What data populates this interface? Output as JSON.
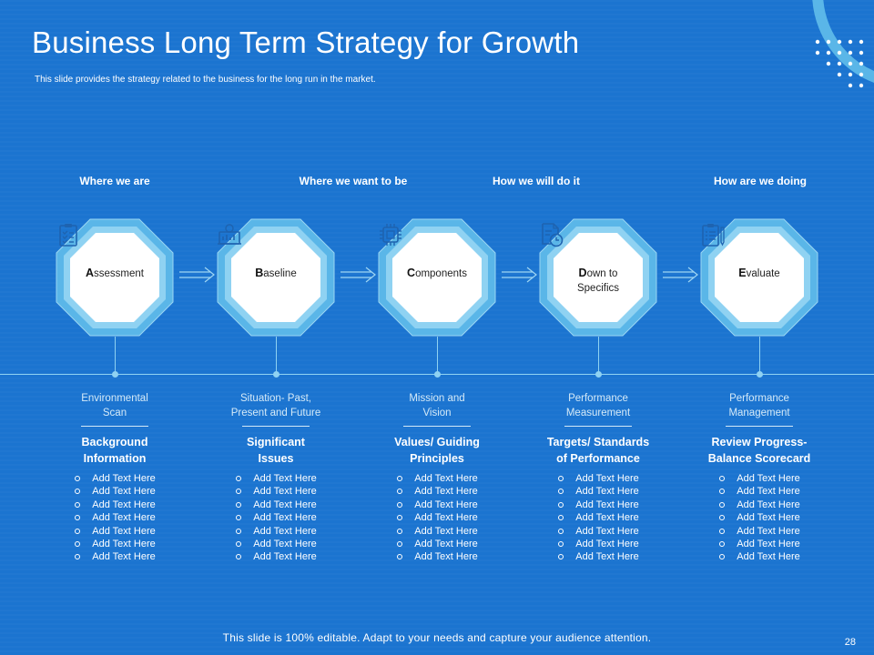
{
  "slide": {
    "title": "Business Long Term Strategy for Growth",
    "subtitle": "This slide provides the strategy related to the business for the long run in the market.",
    "footer": "This slide is 100% editable. Adapt to your needs and capture your audience attention.",
    "page_number": "28"
  },
  "phases": [
    "Where we are",
    "Where we want to be",
    "How we will do it",
    "How are we doing"
  ],
  "steps": [
    {
      "icon": "clipboard-checklist-icon",
      "initial": "A",
      "rest": "ssessment",
      "sub_line1": "Environmental",
      "sub_line2": "Scan",
      "heading_line1": "Background",
      "heading_line2": "Information",
      "items": [
        "Add Text Here",
        "Add Text Here",
        "Add Text Here",
        "Add Text Here",
        "Add Text Here",
        "Add Text Here",
        "Add Text Here"
      ]
    },
    {
      "icon": "idea-board-icon",
      "initial": "B",
      "rest": "aseline",
      "sub_line1": "Situation- Past,",
      "sub_line2": "Present and Future",
      "heading_line1": "Significant",
      "heading_line2": "Issues",
      "items": [
        "Add Text Here",
        "Add Text Here",
        "Add Text Here",
        "Add Text Here",
        "Add Text Here",
        "Add Text Here",
        "Add Text Here"
      ]
    },
    {
      "icon": "chip-icon",
      "initial": "C",
      "rest": "omponents",
      "sub_line1": "Mission and",
      "sub_line2": "Vision",
      "heading_line1": "Values/ Guiding",
      "heading_line2": "Principles",
      "items": [
        "Add Text Here",
        "Add Text Here",
        "Add Text Here",
        "Add Text Here",
        "Add Text Here",
        "Add Text Here",
        "Add Text Here"
      ]
    },
    {
      "icon": "document-clock-icon",
      "initial": "D",
      "rest": "own to",
      "rest_line2": "Specifics",
      "sub_line1": "Performance",
      "sub_line2": "Measurement",
      "heading_line1": "Targets/ Standards",
      "heading_line2": "of Performance",
      "items": [
        "Add Text Here",
        "Add Text Here",
        "Add Text Here",
        "Add Text Here",
        "Add Text Here",
        "Add Text Here",
        "Add Text Here"
      ]
    },
    {
      "icon": "clipboard-pen-icon",
      "initial": "E",
      "rest": "valuate",
      "sub_line1": "Performance",
      "sub_line2": "Management",
      "heading_line1": "Review Progress-",
      "heading_line2": "Balance Scorecard",
      "items": [
        "Add Text Here",
        "Add Text Here",
        "Add Text Here",
        "Add Text Here",
        "Add Text Here",
        "Add Text Here",
        "Add Text Here"
      ]
    }
  ],
  "colors": {
    "background": "#1b74d0",
    "octagon_outer": "#5ab6e8",
    "octagon_ring": "#8fd2f2",
    "octagon_core": "#ffffff",
    "icon_stroke": "#1e63b0",
    "timeline": "#8fd2f2"
  }
}
